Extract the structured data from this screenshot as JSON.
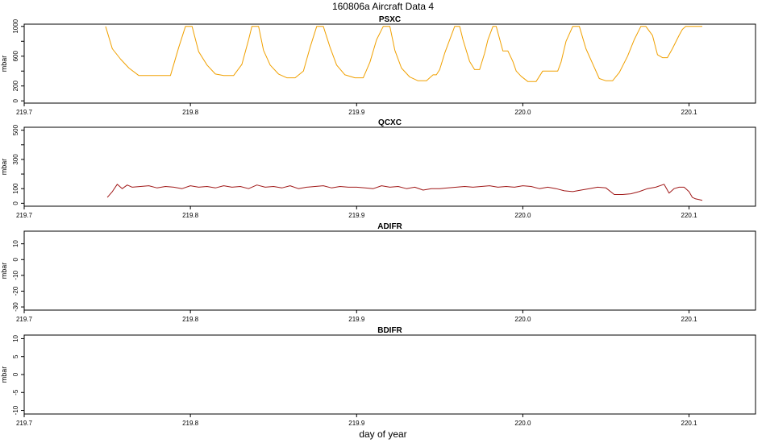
{
  "figure": {
    "title": "160806a    Aircraft Data 4",
    "xlabel": "day of year"
  },
  "chart_data": [
    {
      "type": "line",
      "title": "PSXC",
      "ylabel": "mbar",
      "xlim": [
        219.7,
        220.14
      ],
      "ylim": [
        -30,
        1030
      ],
      "x_ticks": [
        219.7,
        219.8,
        219.9,
        220.0,
        220.1
      ],
      "x_tick_labels": [
        "219.7",
        "219.8",
        "219.9",
        "220.0",
        "220.1"
      ],
      "y_ticks": [
        0,
        200,
        600,
        1000
      ],
      "y_tick_labels": [
        "0",
        "200",
        "600",
        "1000"
      ],
      "y_minor_ticks": [
        400,
        800
      ],
      "series": [
        {
          "color": "#f0a000",
          "x": [
            219.749,
            219.753,
            219.758,
            219.763,
            219.769,
            219.774,
            219.779,
            219.783,
            219.788,
            219.793,
            219.797,
            219.801,
            219.805,
            219.81,
            219.815,
            219.82,
            219.826,
            219.831,
            219.835,
            219.837,
            219.841,
            219.844,
            219.848,
            219.853,
            219.858,
            219.863,
            219.868,
            219.872,
            219.876,
            219.88,
            219.884,
            219.888,
            219.893,
            219.899,
            219.904,
            219.908,
            219.912,
            219.916,
            219.92,
            219.923,
            219.927,
            219.932,
            219.937,
            219.942,
            219.946,
            219.948,
            219.95,
            219.953,
            219.956,
            219.959,
            219.962,
            219.964,
            219.968,
            219.971,
            219.974,
            219.977,
            219.979,
            219.982,
            219.984,
            219.988,
            219.991,
            219.994,
            219.996,
            219.999,
            220.003,
            220.006,
            220.008,
            220.012,
            220.015,
            220.021,
            220.023,
            220.026,
            220.03,
            220.034,
            220.038,
            220.043,
            220.046,
            220.05,
            220.054,
            220.058,
            220.063,
            220.067,
            220.071,
            220.074,
            220.078,
            220.081,
            220.084,
            220.087,
            220.09,
            220.094,
            220.096,
            220.098,
            220.101,
            220.104,
            220.108
          ],
          "y": [
            1000,
            700,
            560,
            440,
            340,
            340,
            340,
            340,
            340,
            720,
            1000,
            1000,
            660,
            480,
            360,
            340,
            340,
            490,
            820,
            1000,
            1000,
            680,
            480,
            360,
            310,
            310,
            400,
            720,
            1000,
            1000,
            720,
            480,
            350,
            310,
            310,
            520,
            820,
            1000,
            1000,
            680,
            440,
            320,
            270,
            270,
            350,
            350,
            420,
            640,
            820,
            1000,
            1000,
            820,
            530,
            420,
            420,
            640,
            820,
            1000,
            1000,
            670,
            670,
            530,
            400,
            330,
            260,
            260,
            260,
            400,
            400,
            400,
            520,
            800,
            1000,
            1000,
            700,
            450,
            300,
            270,
            270,
            380,
            600,
            820,
            1000,
            1000,
            880,
            620,
            580,
            580,
            700,
            880,
            960,
            1000,
            1000,
            1000,
            1000
          ]
        }
      ]
    },
    {
      "type": "line",
      "title": "QCXC",
      "ylabel": "mbar",
      "xlim": [
        219.7,
        220.14
      ],
      "ylim": [
        -20,
        520
      ],
      "x_ticks": [
        219.7,
        219.8,
        219.9,
        220.0,
        220.1
      ],
      "x_tick_labels": [
        "219.7",
        "219.8",
        "219.9",
        "220.0",
        "220.1"
      ],
      "y_ticks": [
        0,
        100,
        300,
        500
      ],
      "y_tick_labels": [
        "0",
        "100",
        "300",
        "500"
      ],
      "y_minor_ticks": [
        200,
        400
      ],
      "series": [
        {
          "color": "#a01818",
          "x": [
            219.75,
            219.753,
            219.756,
            219.759,
            219.762,
            219.765,
            219.77,
            219.775,
            219.78,
            219.785,
            219.79,
            219.795,
            219.8,
            219.805,
            219.81,
            219.815,
            219.82,
            219.825,
            219.83,
            219.835,
            219.84,
            219.845,
            219.85,
            219.855,
            219.86,
            219.865,
            219.87,
            219.875,
            219.88,
            219.885,
            219.89,
            219.895,
            219.9,
            219.905,
            219.91,
            219.915,
            219.92,
            219.925,
            219.93,
            219.935,
            219.94,
            219.945,
            219.95,
            219.955,
            219.96,
            219.965,
            219.97,
            219.975,
            219.98,
            219.985,
            219.99,
            219.995,
            220.0,
            220.005,
            220.01,
            220.015,
            220.02,
            220.025,
            220.03,
            220.035,
            220.04,
            220.045,
            220.05,
            220.055,
            220.06,
            220.065,
            220.07,
            220.075,
            220.08,
            220.085,
            220.088,
            220.091,
            220.094,
            220.097,
            220.1,
            220.102,
            220.104,
            220.106,
            220.108
          ],
          "y": [
            40,
            80,
            130,
            100,
            125,
            110,
            115,
            120,
            105,
            115,
            110,
            100,
            120,
            110,
            115,
            105,
            120,
            110,
            115,
            100,
            125,
            110,
            115,
            105,
            120,
            100,
            110,
            115,
            120,
            105,
            115,
            110,
            110,
            105,
            100,
            120,
            110,
            115,
            100,
            110,
            90,
            100,
            100,
            105,
            110,
            115,
            110,
            115,
            120,
            110,
            115,
            110,
            120,
            115,
            100,
            110,
            100,
            85,
            80,
            90,
            100,
            110,
            105,
            60,
            60,
            65,
            80,
            100,
            110,
            130,
            70,
            100,
            110,
            110,
            80,
            40,
            30,
            25,
            20
          ]
        }
      ]
    },
    {
      "type": "line",
      "title": "ADIFR",
      "ylabel": "mbar",
      "xlim": [
        219.7,
        220.14
      ],
      "ylim": [
        -32,
        18
      ],
      "x_ticks": [
        219.7,
        219.8,
        219.9,
        220.0,
        220.1
      ],
      "x_tick_labels": [
        "219.7",
        "219.8",
        "219.9",
        "220.0",
        "220.1"
      ],
      "y_ticks": [
        -30,
        -20,
        -10,
        0,
        10
      ],
      "y_tick_labels": [
        "-30",
        "-20",
        "-10",
        "0",
        "10"
      ],
      "y_minor_ticks": [],
      "series": []
    },
    {
      "type": "line",
      "title": "BDIFR",
      "ylabel": "mbar",
      "xlim": [
        219.7,
        220.14
      ],
      "ylim": [
        -11,
        11
      ],
      "x_ticks": [
        219.7,
        219.8,
        219.9,
        220.0,
        220.1
      ],
      "x_tick_labels": [
        "219.7",
        "219.8",
        "219.9",
        "220.0",
        "220.1"
      ],
      "y_ticks": [
        -10,
        -5,
        0,
        5,
        10
      ],
      "y_tick_labels": [
        "-10",
        "-5",
        "0",
        "5",
        "10"
      ],
      "y_minor_ticks": [],
      "series": []
    }
  ]
}
